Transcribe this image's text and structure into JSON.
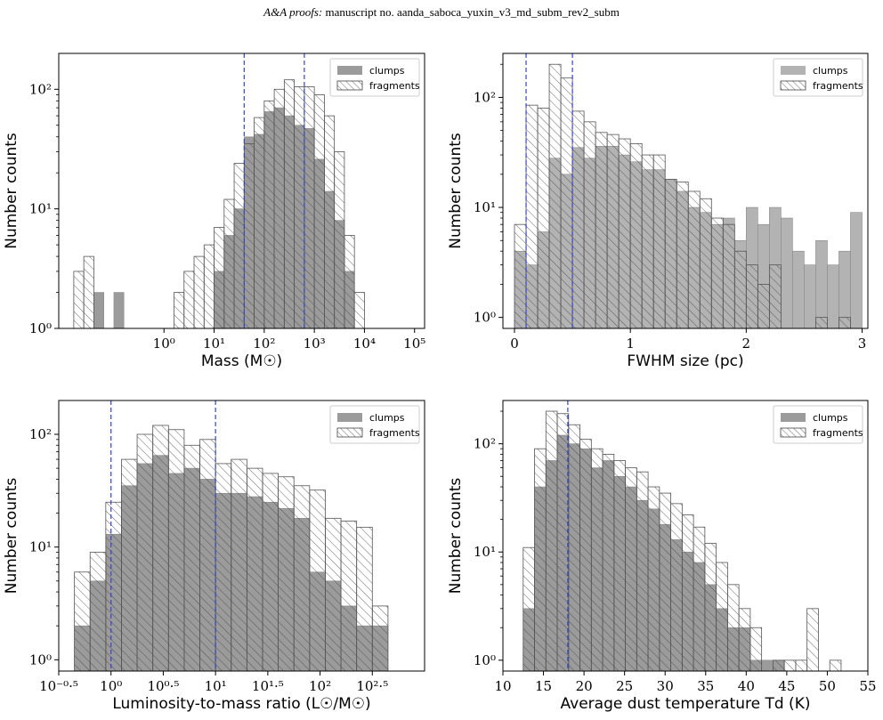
{
  "header": {
    "journal": "A&A proofs:",
    "manuscript": " manuscript no. aanda_saboca_yuxin_v3_md_subm_rev2_subm"
  },
  "colors": {
    "clumps_fill": "#9b9b9b",
    "clumps_fill_light": "#b3b3b3",
    "fragments_edge": "#555555",
    "vline": "#3344cc"
  },
  "chart_data": [
    {
      "type": "bar",
      "panel": "mass",
      "xlabel": "Mass (M☉)",
      "ylabel": "Number counts",
      "xscale": "log",
      "yscale": "log",
      "xlim": [
        -2.1,
        5.2
      ],
      "ylim": [
        0,
        2.3
      ],
      "xtick_values": [
        0,
        1,
        2,
        3,
        4,
        5
      ],
      "xtick_labels": [
        "10⁰",
        "10¹",
        "10²",
        "10³",
        "10⁴",
        "10⁵"
      ],
      "ytick_values": [
        0,
        1,
        2
      ],
      "ytick_labels": [
        "10⁰",
        "10¹",
        "10²"
      ],
      "legend": [
        "clumps",
        "fragments"
      ],
      "legend_position": "top-right",
      "vlines": [
        1.6,
        2.8
      ],
      "bin_edges_log10": [
        -1.8,
        -1.6,
        -1.4,
        -1.2,
        -1.0,
        -0.8,
        -0.6,
        -0.4,
        -0.2,
        0.0,
        0.2,
        0.4,
        0.6,
        0.8,
        1.0,
        1.2,
        1.4,
        1.6,
        1.8,
        2.0,
        2.2,
        2.4,
        2.6,
        2.8,
        3.0,
        3.2,
        3.4,
        3.6,
        3.8,
        4.0
      ],
      "series": [
        {
          "name": "clumps",
          "values": [
            0,
            0,
            2,
            0,
            2,
            0,
            0,
            0,
            0,
            0,
            0,
            0,
            1,
            1,
            3,
            6,
            10,
            40,
            42,
            65,
            70,
            60,
            50,
            47,
            26,
            14,
            8,
            3,
            1
          ]
        },
        {
          "name": "fragments",
          "values": [
            3,
            4,
            0,
            0,
            0,
            0,
            0,
            0,
            0,
            1,
            2,
            3,
            4,
            5,
            7,
            12,
            24,
            35,
            58,
            80,
            100,
            120,
            105,
            105,
            90,
            60,
            30,
            6,
            2
          ]
        }
      ]
    },
    {
      "type": "bar",
      "panel": "size",
      "xlabel": "FWHM size (pc)",
      "ylabel": "Number counts",
      "xscale": "linear",
      "yscale": "log",
      "xlim": [
        -0.1,
        3.05
      ],
      "ylim": [
        -0.1,
        2.4
      ],
      "xtick_values": [
        0,
        1,
        2,
        3
      ],
      "xtick_labels": [
        "0",
        "1",
        "2",
        "3"
      ],
      "ytick_values": [
        0,
        1,
        2
      ],
      "ytick_labels": [
        "10⁰",
        "10¹",
        "10²"
      ],
      "legend": [
        "clumps",
        "fragments"
      ],
      "legend_position": "top-right",
      "vlines": [
        0.1,
        0.5
      ],
      "bin_edges": [
        0.0,
        0.1,
        0.2,
        0.3,
        0.4,
        0.5,
        0.6,
        0.7,
        0.8,
        0.9,
        1.0,
        1.1,
        1.2,
        1.3,
        1.4,
        1.5,
        1.6,
        1.7,
        1.8,
        1.9,
        2.0,
        2.1,
        2.2,
        2.3,
        2.4,
        2.5,
        2.6,
        2.7,
        2.8,
        2.9,
        3.0
      ],
      "series": [
        {
          "name": "clumps",
          "values": [
            4,
            3,
            6,
            28,
            20,
            35,
            28,
            36,
            36,
            30,
            26,
            22,
            22,
            18,
            14,
            10,
            9,
            7,
            8,
            5,
            10,
            7,
            10,
            8,
            4,
            3,
            5,
            3,
            4,
            9
          ]
        },
        {
          "name": "fragments",
          "values": [
            7,
            85,
            80,
            200,
            150,
            75,
            60,
            48,
            46,
            42,
            38,
            30,
            30,
            18,
            17,
            14,
            12,
            8,
            7,
            4,
            3,
            2,
            3,
            0,
            0,
            0,
            1,
            0,
            1,
            0
          ]
        }
      ]
    },
    {
      "type": "bar",
      "panel": "lm_ratio",
      "xlabel": "Luminosity-to-mass ratio (L☉/M☉)",
      "ylabel": "Number counts",
      "xscale": "log",
      "yscale": "log",
      "xlim": [
        -0.5,
        3.0
      ],
      "ylim": [
        -0.1,
        2.3
      ],
      "xtick_values": [
        -0.5,
        0,
        0.5,
        1,
        1.5,
        2,
        2.5
      ],
      "xtick_labels": [
        "10⁻⁰·⁵",
        "10⁰",
        "10⁰·⁵",
        "10¹",
        "10¹·⁵",
        "10²",
        "10²·⁵"
      ],
      "ytick_values": [
        0,
        1,
        2
      ],
      "ytick_labels": [
        "10⁰",
        "10¹",
        "10²"
      ],
      "legend": [
        "clumps",
        "fragments"
      ],
      "legend_position": "top-right",
      "vlines": [
        0.0,
        1.0
      ],
      "bin_edges_log10": [
        -0.35,
        -0.2,
        -0.05,
        0.1,
        0.25,
        0.4,
        0.55,
        0.7,
        0.85,
        1.0,
        1.15,
        1.3,
        1.45,
        1.6,
        1.75,
        1.9,
        2.05,
        2.2,
        2.35,
        2.5,
        2.65
      ],
      "series": [
        {
          "name": "clumps",
          "values": [
            2,
            5,
            13,
            35,
            55,
            65,
            45,
            50,
            40,
            30,
            30,
            28,
            25,
            22,
            18,
            6,
            5,
            3,
            2,
            2
          ]
        },
        {
          "name": "fragments",
          "values": [
            6,
            9,
            25,
            60,
            100,
            120,
            110,
            80,
            90,
            55,
            60,
            50,
            45,
            42,
            35,
            32,
            18,
            17,
            15,
            3
          ]
        }
      ]
    },
    {
      "type": "bar",
      "panel": "temperature",
      "xlabel": "Average dust temperature Td (K)",
      "ylabel": "Number counts",
      "xscale": "linear",
      "yscale": "log",
      "xlim": [
        10,
        55
      ],
      "ylim": [
        -0.1,
        2.4
      ],
      "xtick_values": [
        10,
        15,
        20,
        25,
        30,
        35,
        40,
        45,
        50,
        55
      ],
      "xtick_labels": [
        "10",
        "15",
        "20",
        "25",
        "30",
        "35",
        "40",
        "45",
        "50",
        "55"
      ],
      "ytick_values": [
        0,
        1,
        2
      ],
      "ytick_labels": [
        "10⁰",
        "10¹",
        "10²"
      ],
      "legend": [
        "clumps",
        "fragments"
      ],
      "legend_position": "top-right",
      "vlines": [
        18
      ],
      "bin_edges": [
        12.5,
        13.9,
        15.3,
        16.7,
        18.1,
        19.5,
        20.9,
        22.3,
        23.7,
        25.1,
        26.5,
        27.9,
        29.3,
        30.7,
        32.1,
        33.5,
        34.9,
        36.3,
        37.7,
        39.1,
        40.5,
        41.9,
        43.3,
        44.7,
        46.1,
        47.5,
        48.9,
        50.3,
        51.7,
        53.1
      ],
      "series": [
        {
          "name": "clumps",
          "values": [
            3,
            40,
            70,
            120,
            100,
            90,
            60,
            70,
            50,
            40,
            30,
            25,
            18,
            13,
            10,
            8,
            5,
            3,
            2,
            2,
            1,
            1,
            1,
            0,
            0,
            0,
            0,
            0,
            0
          ]
        },
        {
          "name": "fragments",
          "values": [
            11,
            90,
            200,
            190,
            150,
            110,
            90,
            80,
            70,
            60,
            55,
            40,
            35,
            28,
            22,
            17,
            12,
            8,
            5,
            3,
            2,
            0,
            1,
            1,
            1,
            3,
            0,
            1,
            0
          ]
        }
      ]
    }
  ]
}
